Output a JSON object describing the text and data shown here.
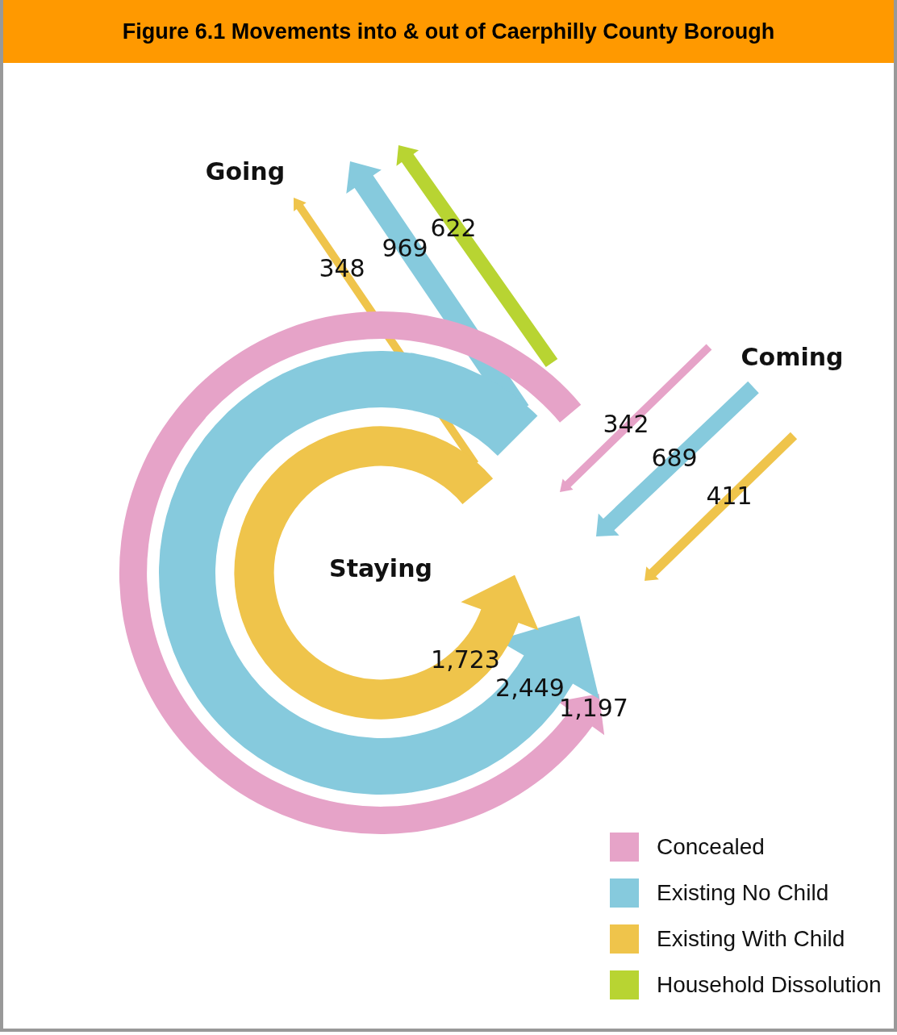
{
  "chart_data": {
    "type": "other",
    "title": "Figure 6.1 Movements into & out of Caerphilly County Borough",
    "categories": [
      "Going",
      "Staying",
      "Coming"
    ],
    "series": [
      {
        "name": "Concealed",
        "color": "#e6a3c8",
        "values": [
          null,
          1197,
          342
        ],
        "value_labels": [
          null,
          "1,197",
          "342"
        ]
      },
      {
        "name": "Existing No Child",
        "color": "#86cadd",
        "values": [
          969,
          2449,
          689
        ],
        "value_labels": [
          "969",
          "2,449",
          "689"
        ]
      },
      {
        "name": "Existing With Child",
        "color": "#efc44b",
        "values": [
          348,
          1723,
          411
        ],
        "value_labels": [
          "348",
          "1,723",
          "411"
        ]
      },
      {
        "name": "Household Dissolution",
        "color": "#b8d432",
        "values": [
          622,
          null,
          null
        ],
        "value_labels": [
          "622",
          null,
          null
        ]
      }
    ],
    "legend": "bottom right"
  }
}
